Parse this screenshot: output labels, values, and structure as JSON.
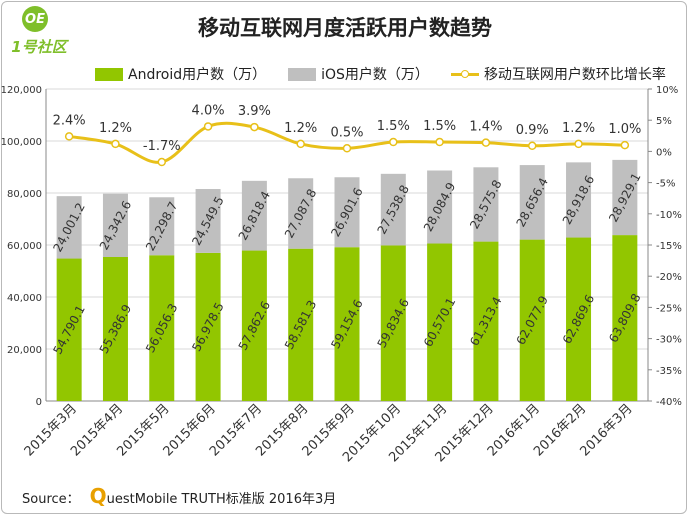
{
  "logo": {
    "badge": "ОЕ",
    "text": "1号社区"
  },
  "title": "移动互联网月度活跃用户数趋势",
  "legend": {
    "android": "Android用户数（万）",
    "ios": "iOS用户数（万）",
    "growth": "移动互联网用户数环比增长率"
  },
  "source": {
    "label": "Source：",
    "q_letter": "Q",
    "rest": "uestMobile TRUTH标准版 2016年3月"
  },
  "colors": {
    "android": "#92c600",
    "ios": "#bfbfbf",
    "growth_line": "#e8c019",
    "grid": "#d9d9d9"
  },
  "chart_data": {
    "type": "bar",
    "title": "移动互联网月度活跃用户数趋势",
    "categories": [
      "2015年3月",
      "2015年4月",
      "2015年5月",
      "2015年6月",
      "2015年7月",
      "2015年8月",
      "2015年9月",
      "2015年10月",
      "2015年11月",
      "2015年12月",
      "2016年1月",
      "2016年2月",
      "2016年3月"
    ],
    "stacked": true,
    "series": [
      {
        "name": "Android用户数（万）",
        "type": "bar",
        "axis": "left",
        "values": [
          54790.1,
          55386.9,
          56056.3,
          56978.5,
          57862.6,
          58581.3,
          59154.6,
          59834.6,
          60570.1,
          61313.4,
          62077.9,
          62869.6,
          63809.8
        ],
        "labels": [
          "54,790.1",
          "55,386.9",
          "56,056.3",
          "56,978.5",
          "57,862.6",
          "58,581.3",
          "59,154.6",
          "59,834.6",
          "60,570.1",
          "61,313.4",
          "62,077.9",
          "62,869.6",
          "63,809.8"
        ]
      },
      {
        "name": "iOS用户数（万）",
        "type": "bar",
        "axis": "left",
        "values": [
          24001.2,
          24342.6,
          22298.7,
          24549.5,
          26818.4,
          27087.8,
          26901.6,
          27538.8,
          28084.9,
          28575.8,
          28656.4,
          28918.6,
          28929.1
        ],
        "labels": [
          "24,001.2",
          "24,342.6",
          "22,298.7",
          "24,549.5",
          "26,818.4",
          "27,087.8",
          "26,901.6",
          "27,538.8",
          "28,084.9",
          "28,575.8",
          "28,656.4",
          "28,918.6",
          "28,929.1"
        ]
      },
      {
        "name": "移动互联网用户数环比增长率",
        "type": "line",
        "axis": "right",
        "values": [
          2.4,
          1.2,
          -1.7,
          4.0,
          3.9,
          1.2,
          0.5,
          1.5,
          1.5,
          1.4,
          0.9,
          1.2,
          1.0
        ],
        "labels": [
          "2.4%",
          "1.2%",
          "-1.7%",
          "4.0%",
          "3.9%",
          "1.2%",
          "0.5%",
          "1.5%",
          "1.5%",
          "1.4%",
          "0.9%",
          "1.2%",
          "1.0%"
        ]
      }
    ],
    "left_axis": {
      "ylim": [
        0,
        120000
      ],
      "ticks": [
        "0",
        "20,000",
        "40,000",
        "60,000",
        "80,000",
        "100,000",
        "120,000"
      ]
    },
    "right_axis": {
      "ylim": [
        -40,
        10
      ],
      "ticks": [
        "-40%",
        "-35%",
        "-30%",
        "-25%",
        "-20%",
        "-15%",
        "-10%",
        "-5%",
        "0%",
        "5%",
        "10%"
      ]
    },
    "grid": true,
    "legend_position": "top"
  }
}
